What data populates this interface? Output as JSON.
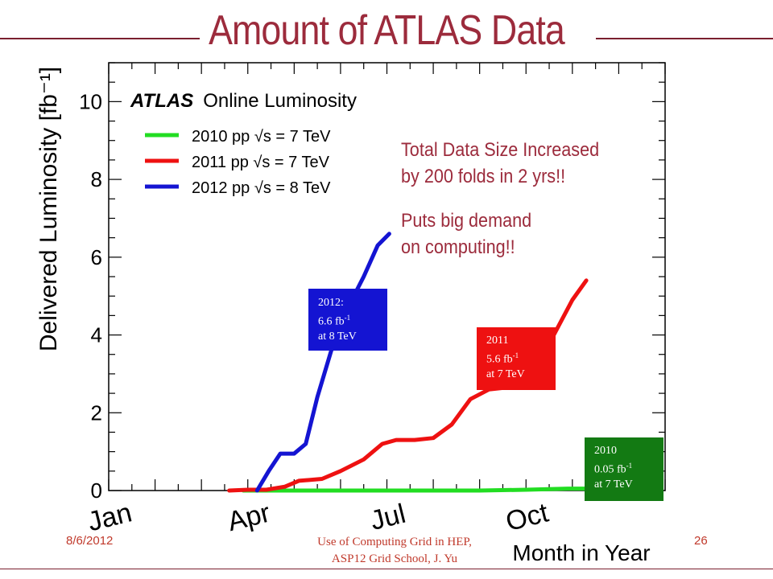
{
  "slide": {
    "title": "Amount of ATLAS Data",
    "footer_date": "8/6/2012",
    "footer_line1": "Use of Computing Grid in HEP,",
    "footer_line2": "ASP12 Grid School, J. Yu",
    "page_number": "26",
    "note1_line1": "Total Data Size Increased",
    "note1_line2": "by 200 folds in 2 yrs!!",
    "note2_line1": "Puts big demand",
    "note2_line2": "on computing!!",
    "title_color": "#9c2b3c"
  },
  "callouts": [
    {
      "year": "2012:",
      "value": "6.6 fb",
      "energy": "at 8 TeV",
      "color": "#1414d2"
    },
    {
      "year": "2011",
      "value": "5.6 fb",
      "energy": "at 7 TeV",
      "color": "#ee1111"
    },
    {
      "year": "2010",
      "value": "0.05 fb",
      "energy": "at 7 TeV",
      "color": "#137a13"
    }
  ],
  "callout_exponent": "-1",
  "chart_data": {
    "type": "line",
    "title": "ATLAS Online Luminosity",
    "xlabel": "Month in Year",
    "ylabel": "Delivered Luminosity [fb⁻¹]",
    "x_ticks": [
      "Jan",
      "Apr",
      "Jul",
      "Oct"
    ],
    "y_ticks": [
      "0",
      "2",
      "4",
      "6",
      "8",
      "10"
    ],
    "ylim": [
      0,
      11
    ],
    "xlim": [
      0,
      12
    ],
    "legend_position": "top-left",
    "series": [
      {
        "name": "2010 pp √s = 7 TeV",
        "color": "#22dd22",
        "x": [
          2.9,
          8.0,
          9.0,
          9.9,
          10.3
        ],
        "y": [
          0,
          0,
          0.02,
          0.05,
          0.05
        ]
      },
      {
        "name": "2011 pp √s = 7 TeV",
        "color": "#ee1111",
        "x": [
          2.6,
          3.0,
          3.4,
          3.8,
          4.1,
          4.6,
          5.0,
          5.5,
          5.9,
          6.2,
          6.6,
          7.0,
          7.4,
          7.8,
          8.2,
          8.6,
          8.9,
          9.3,
          9.6,
          10.0,
          10.3
        ],
        "y": [
          0,
          0.02,
          0.02,
          0.1,
          0.25,
          0.3,
          0.5,
          0.8,
          1.2,
          1.3,
          1.3,
          1.35,
          1.7,
          2.35,
          2.6,
          2.65,
          3.0,
          3.3,
          4.0,
          4.9,
          5.4
        ]
      },
      {
        "name": "2012 pp √s = 8 TeV",
        "color": "#1414d2",
        "x": [
          3.2,
          3.45,
          3.7,
          4.0,
          4.25,
          4.5,
          4.8,
          5.2,
          5.5,
          5.8,
          6.05
        ],
        "y": [
          0,
          0.5,
          0.95,
          0.95,
          1.2,
          2.4,
          3.6,
          4.8,
          5.5,
          6.3,
          6.6
        ]
      }
    ]
  }
}
